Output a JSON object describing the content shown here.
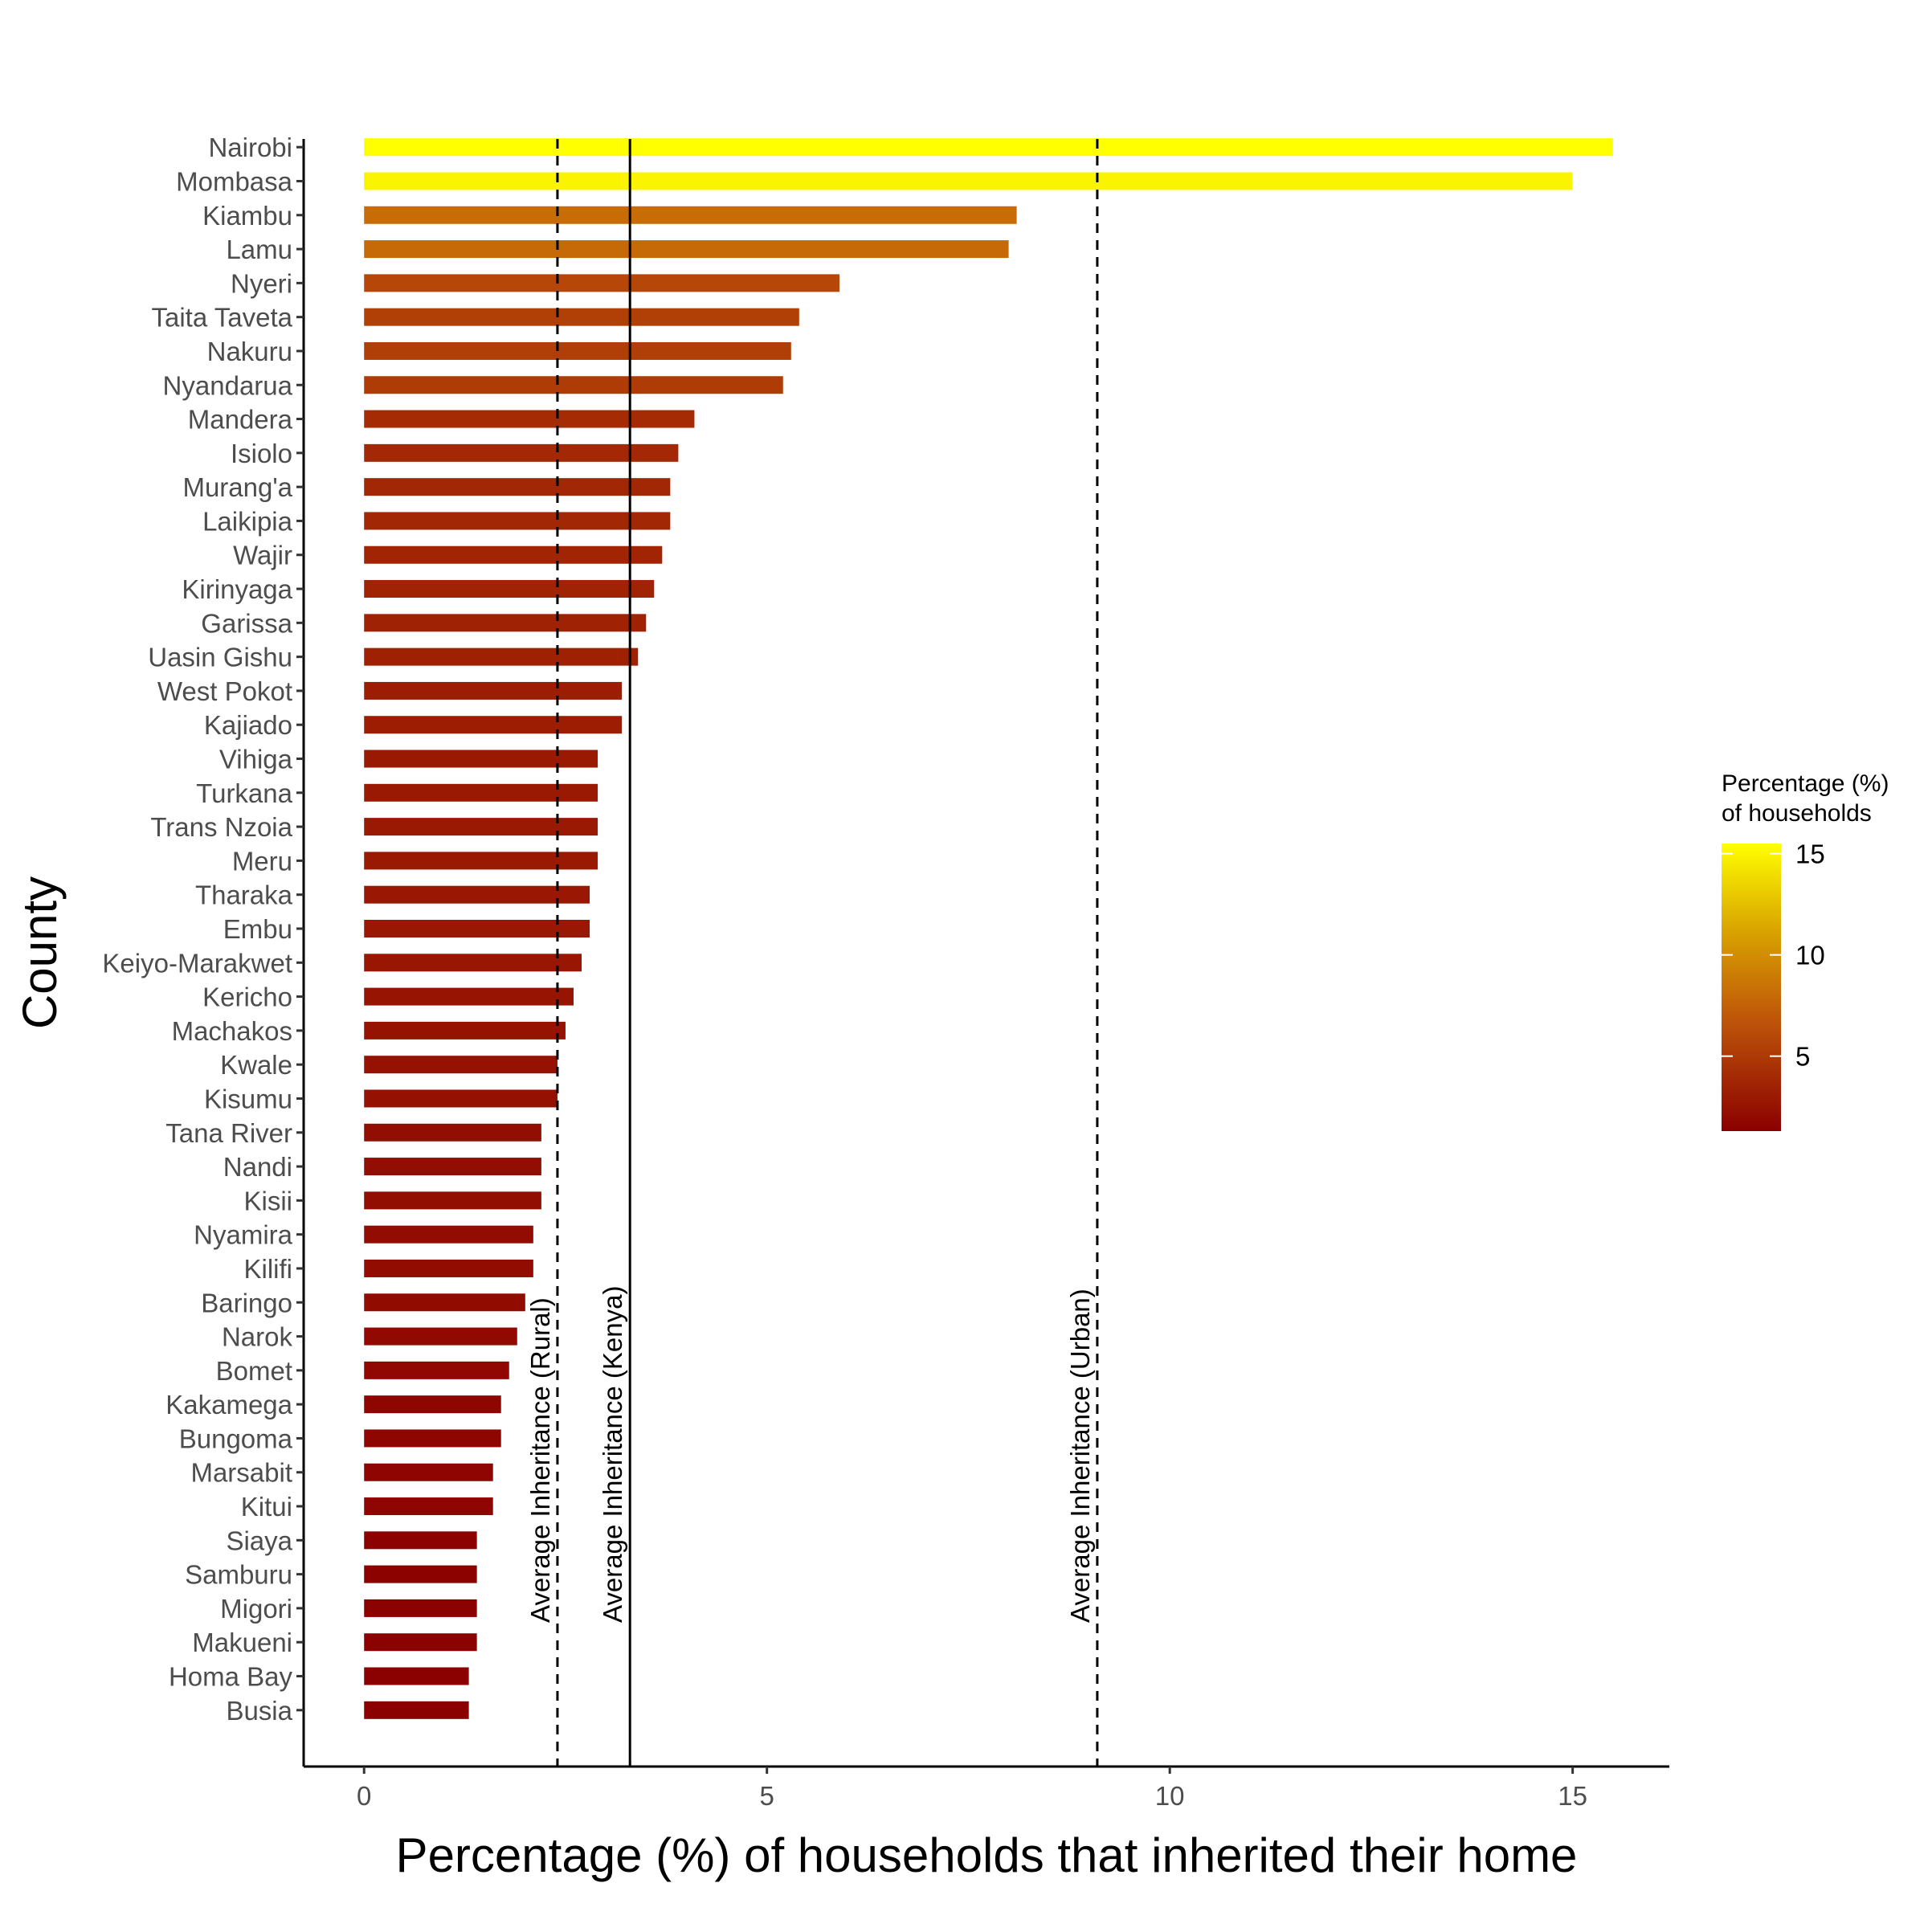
{
  "chart_data": {
    "type": "bar",
    "orientation": "horizontal",
    "xlabel": "Percentage (%) of households that inherited their home",
    "ylabel": "County",
    "xlim": [
      -0.75,
      16.2
    ],
    "xticks": [
      0,
      5,
      10,
      15
    ],
    "xtick_labels": [
      "0",
      "5",
      "10",
      "15"
    ],
    "grid": false,
    "categories": [
      "Nairobi",
      "Mombasa",
      "Kiambu",
      "Lamu",
      "Nyeri",
      "Taita Taveta",
      "Nakuru",
      "Nyandarua",
      "Mandera",
      "Isiolo",
      "Murang'a",
      "Laikipia",
      "Wajir",
      "Kirinyaga",
      "Garissa",
      "Uasin Gishu",
      "West Pokot",
      "Kajiado",
      "Vihiga",
      "Turkana",
      "Trans Nzoia",
      "Meru",
      "Tharaka",
      "Embu",
      "Keiyo-Marakwet",
      "Kericho",
      "Machakos",
      "Kwale",
      "Kisumu",
      "Tana River",
      "Nandi",
      "Kisii",
      "Nyamira",
      "Kilifi",
      "Baringo",
      "Narok",
      "Bomet",
      "Kakamega",
      "Bungoma",
      "Marsabit",
      "Kitui",
      "Siaya",
      "Samburu",
      "Migori",
      "Makueni",
      "Homa Bay",
      "Busia"
    ],
    "values": [
      15.5,
      15.0,
      8.1,
      8.0,
      5.9,
      5.4,
      5.3,
      5.2,
      4.1,
      3.9,
      3.8,
      3.8,
      3.7,
      3.6,
      3.5,
      3.4,
      3.2,
      3.2,
      2.9,
      2.9,
      2.9,
      2.9,
      2.8,
      2.8,
      2.7,
      2.6,
      2.5,
      2.4,
      2.4,
      2.2,
      2.2,
      2.2,
      2.1,
      2.1,
      2.0,
      1.9,
      1.8,
      1.7,
      1.7,
      1.6,
      1.6,
      1.4,
      1.4,
      1.4,
      1.4,
      1.3,
      1.3
    ],
    "reference_lines": [
      {
        "label": "Average Inheritance (Rural)",
        "value": 2.4,
        "style": "dashed"
      },
      {
        "label": "Average Inheritance (Kenya)",
        "value": 3.3,
        "style": "solid"
      },
      {
        "label": "Average Inheritance (Urban)",
        "value": 9.1,
        "style": "dashed"
      }
    ],
    "legend": {
      "title_line1": "Percentage (%)",
      "title_line2": "of households",
      "placement": "right",
      "range": [
        1.3,
        15.5
      ],
      "ticks": [
        5,
        10,
        15
      ],
      "tick_labels": [
        "5",
        "10",
        "15"
      ],
      "low_color": "#8B0000",
      "high_color": "#FFFF00"
    }
  }
}
